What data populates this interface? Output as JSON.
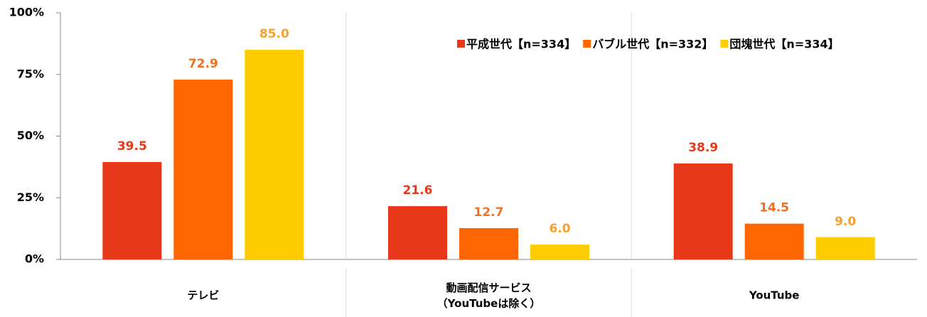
{
  "chart_data": {
    "type": "bar",
    "categories": [
      "テレビ",
      "動画配信サービス\n（YouTubeは除く）",
      "YouTube"
    ],
    "series": [
      {
        "name": "平成世代【n=334】",
        "color": "#e8381a",
        "values": [
          39.5,
          21.6,
          38.9
        ],
        "value_labels": [
          "39.5",
          "21.6",
          "38.9"
        ]
      },
      {
        "name": "バブル世代【n=332】",
        "color": "#ff6600",
        "values": [
          72.9,
          12.7,
          14.5
        ],
        "value_labels": [
          "72.9",
          "12.7",
          "14.5"
        ]
      },
      {
        "name": "団塊世代【n=334】",
        "color": "#ffcc00",
        "values": [
          85,
          6,
          9
        ],
        "value_labels": [
          "85.0",
          "6.0",
          "9.0"
        ]
      }
    ],
    "ylim": [
      0,
      100
    ],
    "yticks": [
      {
        "value": 0,
        "label": "0%"
      },
      {
        "value": 25,
        "label": "25%"
      },
      {
        "value": 50,
        "label": "50%"
      },
      {
        "value": 75,
        "label": "75%"
      },
      {
        "value": 100,
        "label": "100%"
      }
    ],
    "legend": "top-right"
  }
}
